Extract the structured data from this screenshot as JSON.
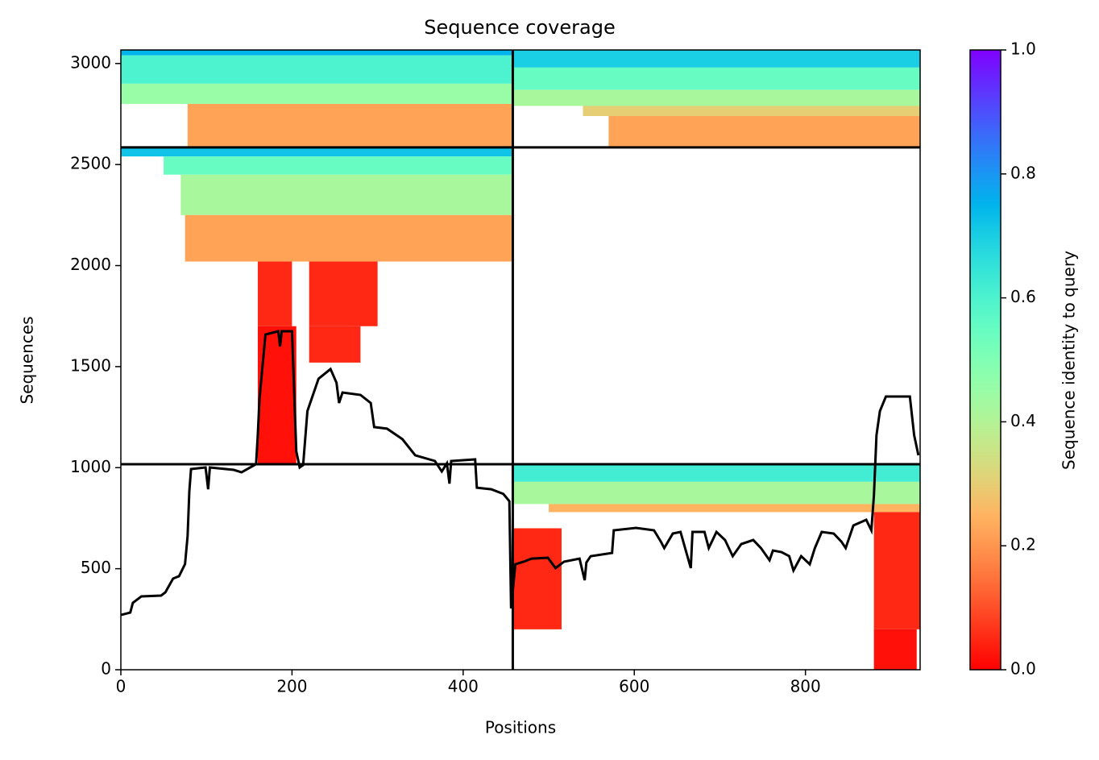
{
  "chart_data": {
    "type": "coverage",
    "title": "Sequence coverage",
    "x_label": "Positions",
    "y_label": "Sequences",
    "colorbar_label": "Sequence identity to query",
    "xlim": [
      0,
      934
    ],
    "ylim": [
      0,
      3067
    ],
    "xticks": [
      0,
      200,
      400,
      600,
      800
    ],
    "yticks": [
      0,
      500,
      1000,
      1500,
      2000,
      2500,
      3000
    ],
    "clim": [
      0,
      1
    ],
    "cticks": [
      {
        "value": 0,
        "label": "0.0"
      },
      {
        "value": 0.2,
        "label": "0.2"
      },
      {
        "value": 0.4,
        "label": "0.4"
      },
      {
        "value": 0.6,
        "label": "0.6"
      },
      {
        "value": 0.8,
        "label": "0.8"
      },
      {
        "value": 1,
        "label": "1.0"
      }
    ],
    "colormap": "rainbow_r",
    "dividers_x": [
      458
    ],
    "dividers_y": [
      1017,
      2585
    ],
    "bands": [
      {
        "x": [
          0,
          458
        ],
        "y": [
          3040,
          3067
        ],
        "identity": 0.75
      },
      {
        "x": [
          0,
          458
        ],
        "y": [
          2900,
          3040
        ],
        "identity": 0.6
      },
      {
        "x": [
          0,
          458
        ],
        "y": [
          2800,
          2900
        ],
        "identity": 0.45
      },
      {
        "x": [
          78,
          458
        ],
        "y": [
          2590,
          2800
        ],
        "identity": 0.22
      },
      {
        "x": [
          458,
          934
        ],
        "y": [
          2980,
          3067
        ],
        "identity": 0.7
      },
      {
        "x": [
          458,
          934
        ],
        "y": [
          2870,
          2980
        ],
        "identity": 0.55
      },
      {
        "x": [
          458,
          934
        ],
        "y": [
          2790,
          2870
        ],
        "identity": 0.42
      },
      {
        "x": [
          540,
          934
        ],
        "y": [
          2740,
          2790
        ],
        "identity": 0.3
      },
      {
        "x": [
          570,
          934
        ],
        "y": [
          2590,
          2740
        ],
        "identity": 0.22
      },
      {
        "x": [
          0,
          458
        ],
        "y": [
          2540,
          2585
        ],
        "identity": 0.72
      },
      {
        "x": [
          50,
          458
        ],
        "y": [
          2450,
          2540
        ],
        "identity": 0.55
      },
      {
        "x": [
          70,
          458
        ],
        "y": [
          2250,
          2450
        ],
        "identity": 0.42
      },
      {
        "x": [
          75,
          458
        ],
        "y": [
          2020,
          2250
        ],
        "identity": 0.22
      },
      {
        "x": [
          160,
          200
        ],
        "y": [
          1700,
          2020
        ],
        "identity": 0.05
      },
      {
        "x": [
          220,
          300
        ],
        "y": [
          1700,
          2020
        ],
        "identity": 0.05
      },
      {
        "x": [
          220,
          280
        ],
        "y": [
          1520,
          1700
        ],
        "identity": 0.05
      },
      {
        "x": [
          160,
          205
        ],
        "y": [
          1017,
          1700
        ],
        "identity": 0.02
      },
      {
        "x": [
          458,
          934
        ],
        "y": [
          930,
          1017
        ],
        "identity": 0.62
      },
      {
        "x": [
          458,
          934
        ],
        "y": [
          820,
          930
        ],
        "identity": 0.42
      },
      {
        "x": [
          500,
          934
        ],
        "y": [
          780,
          820
        ],
        "identity": 0.25
      },
      {
        "x": [
          880,
          934
        ],
        "y": [
          200,
          780
        ],
        "identity": 0.05
      },
      {
        "x": [
          880,
          930
        ],
        "y": [
          0,
          200
        ],
        "identity": 0.02
      },
      {
        "x": [
          458,
          515
        ],
        "y": [
          200,
          700
        ],
        "identity": 0.05
      }
    ],
    "coverage": {
      "x": [
        0,
        11,
        14,
        24,
        47,
        52,
        61,
        68,
        75,
        78,
        80,
        82,
        99,
        102,
        104,
        132,
        141,
        151,
        158,
        160,
        162,
        169,
        184,
        186,
        188,
        200,
        205,
        209,
        213,
        218,
        231,
        245,
        252,
        255,
        259,
        280,
        292,
        296,
        311,
        329,
        344,
        367,
        375,
        381,
        384,
        386,
        414,
        416,
        433,
        447,
        454,
        456,
        461,
        471,
        480,
        499,
        508,
        518,
        536,
        542,
        544,
        549,
        574,
        576,
        602,
        623,
        631,
        635,
        645,
        654,
        666,
        668,
        682,
        687,
        696,
        706,
        715,
        725,
        739,
        748,
        758,
        762,
        772,
        781,
        786,
        795,
        805,
        811,
        819,
        833,
        842,
        847,
        856,
        871,
        877,
        880,
        883,
        887,
        894,
        922,
        927,
        932
      ],
      "y": [
        271,
        283,
        331,
        363,
        367,
        383,
        451,
        463,
        523,
        662,
        882,
        993,
        1001,
        893,
        1001,
        989,
        977,
        1001,
        1017,
        1161,
        1340,
        1659,
        1675,
        1600,
        1675,
        1675,
        1081,
        1001,
        1013,
        1280,
        1440,
        1488,
        1420,
        1320,
        1372,
        1360,
        1320,
        1201,
        1193,
        1141,
        1061,
        1033,
        981,
        1021,
        921,
        1033,
        1041,
        901,
        893,
        870,
        834,
        303,
        522,
        535,
        550,
        554,
        503,
        535,
        550,
        443,
        531,
        562,
        578,
        690,
        702,
        690,
        634,
        602,
        674,
        682,
        503,
        682,
        682,
        602,
        682,
        642,
        562,
        622,
        642,
        602,
        542,
        590,
        582,
        562,
        491,
        562,
        522,
        602,
        682,
        674,
        634,
        602,
        714,
        742,
        690,
        862,
        1161,
        1280,
        1352,
        1352,
        1161,
        1061
      ]
    }
  }
}
